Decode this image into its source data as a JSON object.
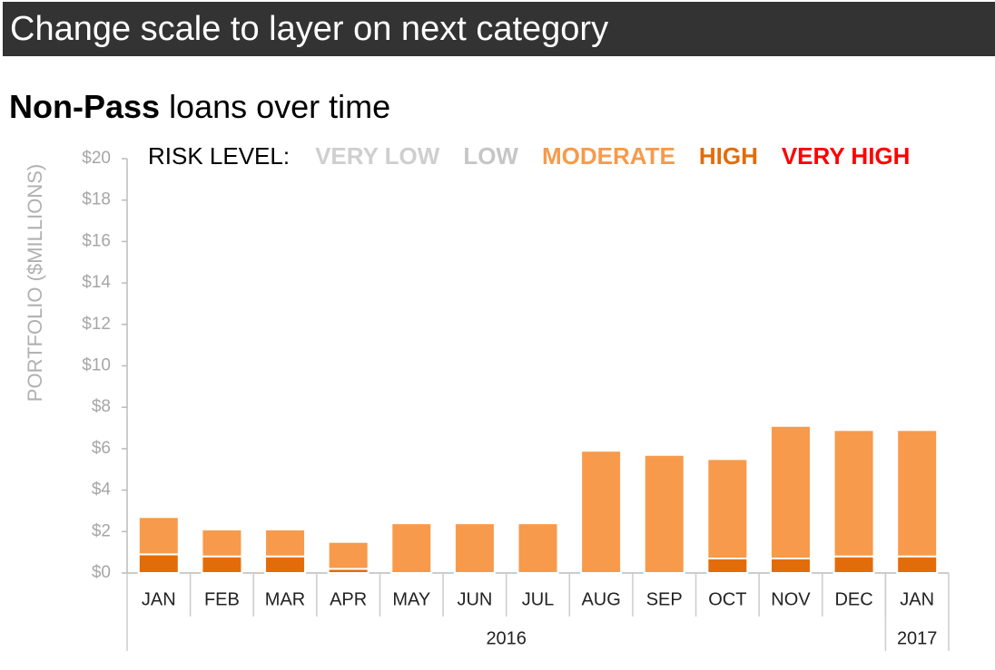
{
  "header": {
    "title": "Change scale to layer on next category"
  },
  "chart_data": {
    "type": "stacked_bar",
    "title": {
      "bold": "Non-Pass",
      "rest": "loans over time"
    },
    "ylabel": "PORTFOLIO ($MILLIONS)",
    "legend_title": "RISK LEVEL:",
    "categories": [
      "JAN",
      "FEB",
      "MAR",
      "APR",
      "MAY",
      "JUN",
      "JUL",
      "AUG",
      "SEP",
      "OCT",
      "NOV",
      "DEC",
      "JAN"
    ],
    "x_groups": [
      {
        "label": "2016",
        "count": 12
      },
      {
        "label": "2017",
        "count": 1
      }
    ],
    "series": [
      {
        "name": "VERY LOW",
        "color": "#cfcfcf",
        "values": [
          0,
          0,
          0,
          0,
          0,
          0,
          0,
          0,
          0,
          0,
          0,
          0,
          0
        ]
      },
      {
        "name": "LOW",
        "color": "#c6c6c6",
        "values": [
          0,
          0,
          0,
          0,
          0,
          0,
          0,
          0,
          0,
          0,
          0,
          0,
          0
        ]
      },
      {
        "name": "MODERATE",
        "color": "#f79a4b",
        "values": [
          1.8,
          1.3,
          1.3,
          1.3,
          2.4,
          2.4,
          2.4,
          5.9,
          5.7,
          4.8,
          6.4,
          6.1,
          6.1
        ]
      },
      {
        "name": "HIGH",
        "color": "#e36c0a",
        "values": [
          0.9,
          0.8,
          0.8,
          0.2,
          0,
          0,
          0,
          0,
          0,
          0.7,
          0.7,
          0.8,
          0.8
        ]
      },
      {
        "name": "VERY HIGH",
        "color": "#ff0000",
        "values": [
          0,
          0,
          0,
          0,
          0,
          0,
          0,
          0,
          0,
          0,
          0,
          0,
          0
        ]
      }
    ],
    "ylim": [
      0,
      20
    ],
    "yticks": [
      {
        "value": 0,
        "label": "$0"
      },
      {
        "value": 2,
        "label": "$2"
      },
      {
        "value": 4,
        "label": "$4"
      },
      {
        "value": 6,
        "label": "$6"
      },
      {
        "value": 8,
        "label": "$8"
      },
      {
        "value": 10,
        "label": "$10"
      },
      {
        "value": 12,
        "label": "$12"
      },
      {
        "value": 14,
        "label": "$14"
      },
      {
        "value": 16,
        "label": "$16"
      },
      {
        "value": 18,
        "label": "$18"
      },
      {
        "value": 20,
        "label": "$20"
      }
    ]
  }
}
